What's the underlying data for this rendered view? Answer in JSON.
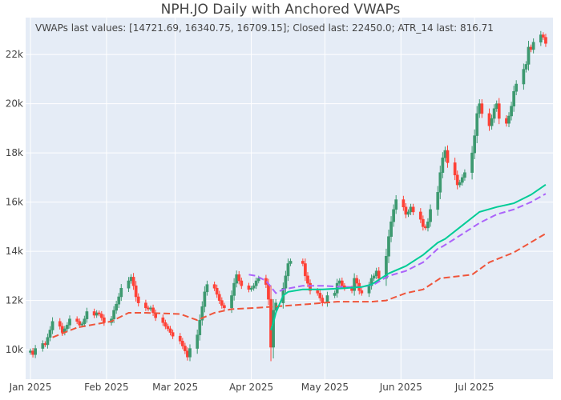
{
  "chart_data": {
    "type": "candlestick",
    "title": "NPH.JO Daily with Anchored VWAPs",
    "annotation": "VWAPs last values: [14721.69, 16340.75, 16709.15]; Closed last: 22450.0; ATR_14 last: 816.71",
    "xlabel": "",
    "ylabel": "",
    "x_ticks": [
      "Jan 2025",
      "Feb 2025",
      "Mar 2025",
      "Apr 2025",
      "May 2025",
      "Jun 2025",
      "Jul 2025"
    ],
    "y_ticks": [
      "10k",
      "12k",
      "14k",
      "16k",
      "18k",
      "20k",
      "22k"
    ],
    "y_tick_values": [
      10000,
      12000,
      14000,
      16000,
      18000,
      20000,
      22000
    ],
    "x_range": [
      "2025-01-01",
      "2025-07-31"
    ],
    "ylim": [
      8800,
      23500
    ],
    "grid": true,
    "colors": {
      "background": "#e5ecf6",
      "up": "#3d9970",
      "down": "#ff4136",
      "vwap1": "#ef553b",
      "vwap2": "#ab63fa",
      "vwap3": "#00cc96"
    },
    "candles_close": [
      [
        "2025-01-01",
        9950
      ],
      [
        "2025-01-02",
        9800
      ],
      [
        "2025-01-03",
        10050
      ],
      [
        "2025-01-06",
        10250
      ],
      [
        "2025-01-07",
        10200
      ],
      [
        "2025-01-08",
        10500
      ],
      [
        "2025-01-09",
        10800
      ],
      [
        "2025-01-10",
        11150
      ],
      [
        "2025-01-13",
        10950
      ],
      [
        "2025-01-14",
        10700
      ],
      [
        "2025-01-15",
        10850
      ],
      [
        "2025-01-16",
        11000
      ],
      [
        "2025-01-17",
        11250
      ],
      [
        "2025-01-20",
        11150
      ],
      [
        "2025-01-21",
        11000
      ],
      [
        "2025-01-22",
        11050
      ],
      [
        "2025-01-23",
        11250
      ],
      [
        "2025-01-24",
        11550
      ],
      [
        "2025-01-27",
        11400
      ],
      [
        "2025-01-28",
        11500
      ],
      [
        "2025-01-29",
        11450
      ],
      [
        "2025-01-30",
        11300
      ],
      [
        "2025-01-31",
        11100
      ],
      [
        "2025-02-03",
        11250
      ],
      [
        "2025-02-04",
        11600
      ],
      [
        "2025-02-05",
        11850
      ],
      [
        "2025-02-06",
        12150
      ],
      [
        "2025-02-07",
        12500
      ],
      [
        "2025-02-10",
        12800
      ],
      [
        "2025-02-11",
        12950
      ],
      [
        "2025-02-12",
        12600
      ],
      [
        "2025-02-13",
        12150
      ],
      [
        "2025-02-14",
        11900
      ],
      [
        "2025-02-17",
        11700
      ],
      [
        "2025-02-18",
        11650
      ],
      [
        "2025-02-19",
        11700
      ],
      [
        "2025-02-20",
        11500
      ],
      [
        "2025-02-21",
        11300
      ],
      [
        "2025-02-24",
        11100
      ],
      [
        "2025-02-25",
        10950
      ],
      [
        "2025-02-26",
        10850
      ],
      [
        "2025-02-27",
        10700
      ],
      [
        "2025-02-28",
        10550
      ],
      [
        "2025-03-03",
        10350
      ],
      [
        "2025-03-04",
        10150
      ],
      [
        "2025-03-05",
        9950
      ],
      [
        "2025-03-06",
        9700
      ],
      [
        "2025-03-07",
        10050
      ],
      [
        "2025-03-10",
        10600
      ],
      [
        "2025-03-11",
        11200
      ],
      [
        "2025-03-12",
        11750
      ],
      [
        "2025-03-13",
        12350
      ],
      [
        "2025-03-14",
        12650
      ],
      [
        "2025-03-17",
        12500
      ],
      [
        "2025-03-18",
        12250
      ],
      [
        "2025-03-19",
        12000
      ],
      [
        "2025-03-20",
        11800
      ],
      [
        "2025-03-21",
        11700
      ],
      [
        "2025-03-24",
        12200
      ],
      [
        "2025-03-25",
        12700
      ],
      [
        "2025-03-26",
        13050
      ],
      [
        "2025-03-27",
        12800
      ],
      [
        "2025-03-28",
        12600
      ],
      [
        "2025-03-31",
        12450
      ],
      [
        "2025-04-01",
        12500
      ],
      [
        "2025-04-02",
        12600
      ],
      [
        "2025-04-03",
        12800
      ],
      [
        "2025-04-04",
        12900
      ],
      [
        "2025-04-07",
        12650
      ],
      [
        "2025-04-08",
        12050
      ],
      [
        "2025-04-09",
        10100
      ],
      [
        "2025-04-10",
        11600
      ],
      [
        "2025-04-11",
        11900
      ],
      [
        "2025-04-14",
        12500
      ],
      [
        "2025-04-15",
        13000
      ],
      [
        "2025-04-16",
        13500
      ],
      [
        "2025-04-17",
        13600
      ],
      [
        "2025-04-22",
        13500
      ],
      [
        "2025-04-23",
        13000
      ],
      [
        "2025-04-24",
        12700
      ],
      [
        "2025-04-25",
        12400
      ],
      [
        "2025-04-28",
        12300
      ],
      [
        "2025-04-29",
        12100
      ],
      [
        "2025-04-30",
        11900
      ],
      [
        "2025-05-02",
        12200
      ],
      [
        "2025-05-05",
        12300
      ],
      [
        "2025-05-06",
        12700
      ],
      [
        "2025-05-07",
        12800
      ],
      [
        "2025-05-08",
        12600
      ],
      [
        "2025-05-09",
        12500
      ],
      [
        "2025-05-12",
        12400
      ],
      [
        "2025-05-13",
        12900
      ],
      [
        "2025-05-14",
        12700
      ],
      [
        "2025-05-15",
        12400
      ],
      [
        "2025-05-16",
        12300
      ],
      [
        "2025-05-19",
        12600
      ],
      [
        "2025-05-20",
        12900
      ],
      [
        "2025-05-21",
        13000
      ],
      [
        "2025-05-22",
        13200
      ],
      [
        "2025-05-23",
        12900
      ],
      [
        "2025-05-26",
        13800
      ],
      [
        "2025-05-27",
        14600
      ],
      [
        "2025-05-28",
        15200
      ],
      [
        "2025-05-29",
        15700
      ],
      [
        "2025-05-30",
        16100
      ],
      [
        "2025-06-02",
        15800
      ],
      [
        "2025-06-03",
        15500
      ],
      [
        "2025-06-04",
        15600
      ],
      [
        "2025-06-05",
        15800
      ],
      [
        "2025-06-06",
        15600
      ],
      [
        "2025-06-09",
        15300
      ],
      [
        "2025-06-10",
        15000
      ],
      [
        "2025-06-11",
        14950
      ],
      [
        "2025-06-12",
        15200
      ],
      [
        "2025-06-13",
        15700
      ],
      [
        "2025-06-16",
        16400
      ],
      [
        "2025-06-17",
        17200
      ],
      [
        "2025-06-18",
        17800
      ],
      [
        "2025-06-19",
        18100
      ],
      [
        "2025-06-20",
        17600
      ],
      [
        "2025-06-23",
        17100
      ],
      [
        "2025-06-24",
        16700
      ],
      [
        "2025-06-25",
        16800
      ],
      [
        "2025-06-26",
        17000
      ],
      [
        "2025-06-27",
        17200
      ],
      [
        "2025-06-30",
        18000
      ],
      [
        "2025-07-01",
        18700
      ],
      [
        "2025-07-02",
        19600
      ],
      [
        "2025-07-03",
        20000
      ],
      [
        "2025-07-04",
        19600
      ],
      [
        "2025-07-07",
        19100
      ],
      [
        "2025-07-08",
        19400
      ],
      [
        "2025-07-09",
        19800
      ],
      [
        "2025-07-10",
        20000
      ],
      [
        "2025-07-11",
        19400
      ],
      [
        "2025-07-14",
        19200
      ],
      [
        "2025-07-15",
        19500
      ],
      [
        "2025-07-16",
        19900
      ],
      [
        "2025-07-17",
        20500
      ],
      [
        "2025-07-18",
        20800
      ],
      [
        "2025-07-21",
        21400
      ],
      [
        "2025-07-22",
        21600
      ],
      [
        "2025-07-23",
        22300
      ],
      [
        "2025-07-24",
        22200
      ],
      [
        "2025-07-25",
        22500
      ],
      [
        "2025-07-28",
        22800
      ],
      [
        "2025-07-29",
        22700
      ],
      [
        "2025-07-30",
        22450
      ]
    ],
    "vwaps": [
      {
        "dash": true,
        "color": "#ef553b",
        "x": [
          "2025-01-10",
          "2025-01-20",
          "2025-02-03",
          "2025-02-10",
          "2025-02-17",
          "2025-03-03",
          "2025-03-10",
          "2025-03-17",
          "2025-03-24",
          "2025-04-03",
          "2025-04-10",
          "2025-04-24",
          "2025-05-06",
          "2025-05-20",
          "2025-05-26",
          "2025-06-03",
          "2025-06-10",
          "2025-06-17",
          "2025-06-30",
          "2025-07-07",
          "2025-07-17",
          "2025-07-30"
        ],
        "y": [
          10500,
          10900,
          11150,
          11500,
          11500,
          11450,
          11200,
          11500,
          11650,
          11700,
          11750,
          11850,
          11950,
          11950,
          12000,
          12300,
          12450,
          12900,
          13050,
          13550,
          13950,
          14720
        ]
      },
      {
        "dash": true,
        "color": "#ab63fa",
        "x": [
          "2025-03-31",
          "2025-04-03",
          "2025-04-07",
          "2025-04-11",
          "2025-04-14",
          "2025-04-22",
          "2025-04-30",
          "2025-05-09",
          "2025-05-16",
          "2025-05-21",
          "2025-05-27",
          "2025-06-03",
          "2025-06-10",
          "2025-06-16",
          "2025-06-18",
          "2025-06-26",
          "2025-07-03",
          "2025-07-10",
          "2025-07-17",
          "2025-07-24",
          "2025-07-30"
        ],
        "y": [
          13050,
          13000,
          12800,
          12300,
          12450,
          12600,
          12600,
          12550,
          12550,
          12650,
          13000,
          13200,
          13550,
          14100,
          14200,
          14700,
          15150,
          15500,
          15700,
          16000,
          16340
        ]
      },
      {
        "dash": false,
        "color": "#00cc96",
        "x": [
          "2025-04-09",
          "2025-04-10",
          "2025-04-11",
          "2025-04-14",
          "2025-04-16",
          "2025-04-22",
          "2025-04-30",
          "2025-05-09",
          "2025-05-16",
          "2025-05-20",
          "2025-05-27",
          "2025-06-03",
          "2025-06-10",
          "2025-06-16",
          "2025-06-19",
          "2025-06-26",
          "2025-07-03",
          "2025-07-10",
          "2025-07-17",
          "2025-07-24",
          "2025-07-30"
        ],
        "y": [
          10800,
          11100,
          11500,
          12200,
          12350,
          12450,
          12450,
          12500,
          12550,
          12650,
          13100,
          13400,
          13850,
          14350,
          14500,
          15050,
          15600,
          15800,
          15950,
          16300,
          16710
        ]
      }
    ]
  }
}
